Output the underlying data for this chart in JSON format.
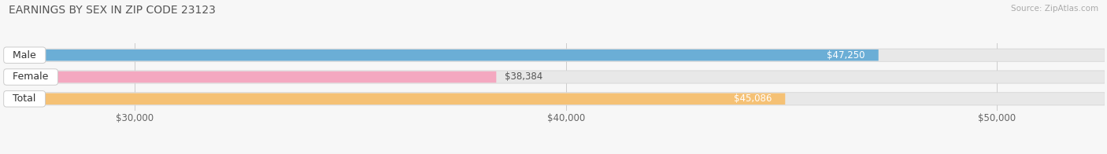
{
  "title": "EARNINGS BY SEX IN ZIP CODE 23123",
  "source": "Source: ZipAtlas.com",
  "categories": [
    "Male",
    "Female",
    "Total"
  ],
  "values": [
    47250,
    38384,
    45086
  ],
  "bar_colors": [
    "#6baed6",
    "#f4a8c0",
    "#f5c175"
  ],
  "track_color": "#e8e8e8",
  "label_colors": [
    "white",
    "#666666",
    "white"
  ],
  "value_in_bar": [
    true,
    false,
    true
  ],
  "xmin": 27000,
  "xmax": 52500,
  "xticks": [
    30000,
    40000,
    50000
  ],
  "xtick_labels": [
    "$30,000",
    "$40,000",
    "$50,000"
  ],
  "background_color": "#f7f7f7",
  "bar_height": 0.52,
  "title_fontsize": 10,
  "label_fontsize": 9,
  "value_fontsize": 8.5,
  "tick_fontsize": 8.5
}
